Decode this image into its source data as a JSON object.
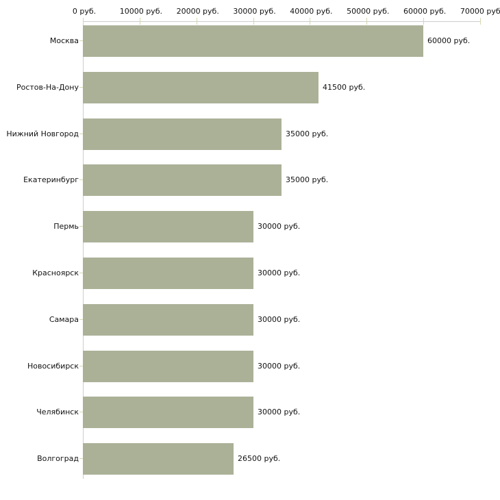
{
  "chart_data": {
    "type": "bar",
    "orientation": "horizontal",
    "title": "",
    "xlabel": "",
    "ylabel": "",
    "unit": "руб.",
    "grid": false,
    "legend": false,
    "categories": [
      "Москва",
      "Ростов-На-Дону",
      "Нижний Новгород",
      "Екатеринбург",
      "Пермь",
      "Красноярск",
      "Самара",
      "Новосибирск",
      "Челябинск",
      "Волгоград"
    ],
    "values": [
      60000,
      41500,
      35000,
      35000,
      30000,
      30000,
      30000,
      30000,
      30000,
      26500
    ],
    "value_labels": [
      "60000 руб.",
      "41500 руб.",
      "35000 руб.",
      "35000 руб.",
      "30000 руб.",
      "30000 руб.",
      "30000 руб.",
      "30000 руб.",
      "30000 руб.",
      "26500 руб."
    ],
    "x_axis": {
      "min": 0,
      "max": 70000,
      "tick_values": [
        0,
        10000,
        20000,
        30000,
        40000,
        50000,
        60000,
        70000
      ],
      "tick_labels": [
        "0 руб.",
        "10000 руб.",
        "20000 руб.",
        "30000 руб.",
        "40000 руб.",
        "50000 руб.",
        "60000 руб.",
        "70000 руб."
      ]
    },
    "colors": {
      "bar": "#abb197",
      "axis_line": "#cccccc",
      "tick": "#d5d7b2",
      "text": "#111111",
      "background": "#ffffff"
    }
  }
}
